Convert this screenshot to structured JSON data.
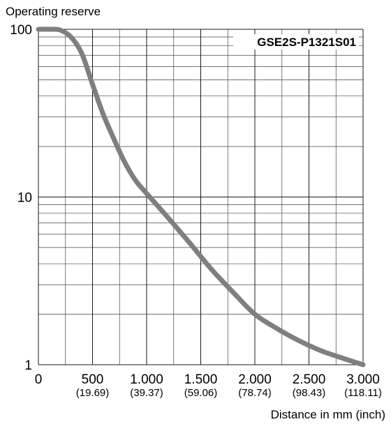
{
  "chart_data": {
    "type": "line",
    "title": "",
    "ylabel": "Operating reserve",
    "xlabel": "Distance in mm (inch)",
    "model": "GSE2S-P1321S01",
    "yscale": "log",
    "ylim": [
      1,
      100
    ],
    "xlim": [
      0,
      3000
    ],
    "grid": true,
    "y_ticks": [
      {
        "value": 1,
        "label": "1"
      },
      {
        "value": 10,
        "label": "10"
      },
      {
        "value": 100,
        "label": "100"
      }
    ],
    "x_ticks": [
      {
        "value": 0,
        "label": "0",
        "sub": ""
      },
      {
        "value": 500,
        "label": "500",
        "sub": "(19.69)"
      },
      {
        "value": 1000,
        "label": "1.000",
        "sub": "(39.37)"
      },
      {
        "value": 1500,
        "label": "1.500",
        "sub": "(59.06)"
      },
      {
        "value": 2000,
        "label": "2.000",
        "sub": "(78.74)"
      },
      {
        "value": 2500,
        "label": "2.500",
        "sub": "(98.43)"
      },
      {
        "value": 3000,
        "label": "3.000",
        "sub": "(118.11)"
      }
    ],
    "series": [
      {
        "color": "#7f7f7f",
        "x": [
          0,
          100,
          200,
          300,
          400,
          500,
          600,
          700,
          800,
          900,
          1000,
          1200,
          1400,
          1600,
          1800,
          2000,
          2200,
          2400,
          2600,
          2800,
          3000
        ],
        "y": [
          100,
          100,
          99,
          90,
          72,
          47,
          31,
          22,
          16,
          12.5,
          10.5,
          7.5,
          5.3,
          3.7,
          2.7,
          2.0,
          1.65,
          1.4,
          1.22,
          1.1,
          1.0
        ]
      }
    ]
  }
}
